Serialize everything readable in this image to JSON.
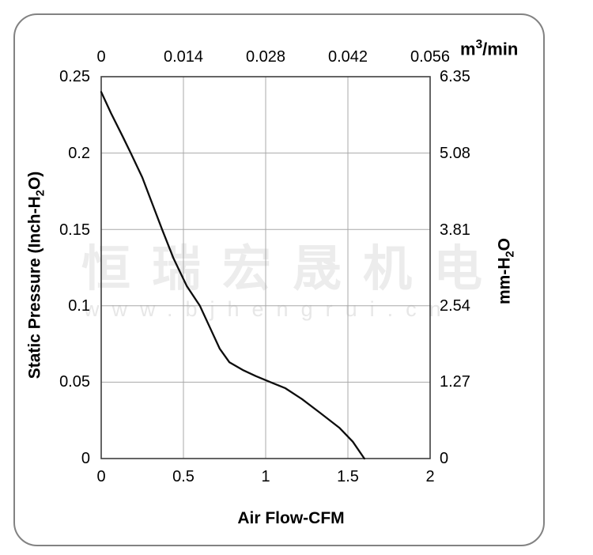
{
  "watermark": {
    "cjk": "恒瑞宏晟机电",
    "url": "www.bjhengrui.cn"
  },
  "chart_data": {
    "type": "line",
    "grid": true,
    "x_bottom": {
      "label": "Air Flow-CFM",
      "range": [
        0,
        2
      ],
      "ticks": [
        "0",
        "0.5",
        "1",
        "1.5",
        "2"
      ]
    },
    "x_top": {
      "label_parts": {
        "pre": "m",
        "sup": "3",
        "post": "/min"
      },
      "range": [
        0,
        0.056
      ],
      "ticks": [
        "0",
        "0.014",
        "0.028",
        "0.042",
        "0.056"
      ]
    },
    "y_left": {
      "label_parts": {
        "pre": "Static Pressure (Inch-H",
        "sub": "2",
        "post": "O)"
      },
      "range": [
        0,
        0.25
      ],
      "ticks": [
        "0.25",
        "0.2",
        "0.15",
        "0.1",
        "0.05",
        "0"
      ]
    },
    "y_right": {
      "label_parts": {
        "pre": "mm-H",
        "sub": "2",
        "post": "O"
      },
      "range": [
        0,
        6.35
      ],
      "ticks": [
        "6.35",
        "5.08",
        "3.81",
        "2.54",
        "1.27",
        "0"
      ]
    },
    "series": [
      {
        "name": "static-pressure-vs-airflow",
        "color": "#0d0d0d",
        "points": [
          [
            0.0,
            0.24
          ],
          [
            0.06,
            0.226
          ],
          [
            0.13,
            0.211
          ],
          [
            0.18,
            0.2
          ],
          [
            0.25,
            0.184
          ],
          [
            0.31,
            0.167
          ],
          [
            0.37,
            0.15
          ],
          [
            0.44,
            0.131
          ],
          [
            0.52,
            0.113
          ],
          [
            0.6,
            0.1
          ],
          [
            0.66,
            0.086
          ],
          [
            0.72,
            0.072
          ],
          [
            0.78,
            0.063
          ],
          [
            0.86,
            0.058
          ],
          [
            0.94,
            0.054
          ],
          [
            1.03,
            0.05
          ],
          [
            1.12,
            0.046
          ],
          [
            1.22,
            0.039
          ],
          [
            1.33,
            0.03
          ],
          [
            1.45,
            0.02
          ],
          [
            1.53,
            0.011
          ],
          [
            1.6,
            0.0
          ]
        ]
      }
    ],
    "colors": {
      "curve": "#0d0d0d",
      "grid": "#a8a8a8",
      "plot_border": "#3f3f3f",
      "watermark": "#ececec"
    }
  }
}
